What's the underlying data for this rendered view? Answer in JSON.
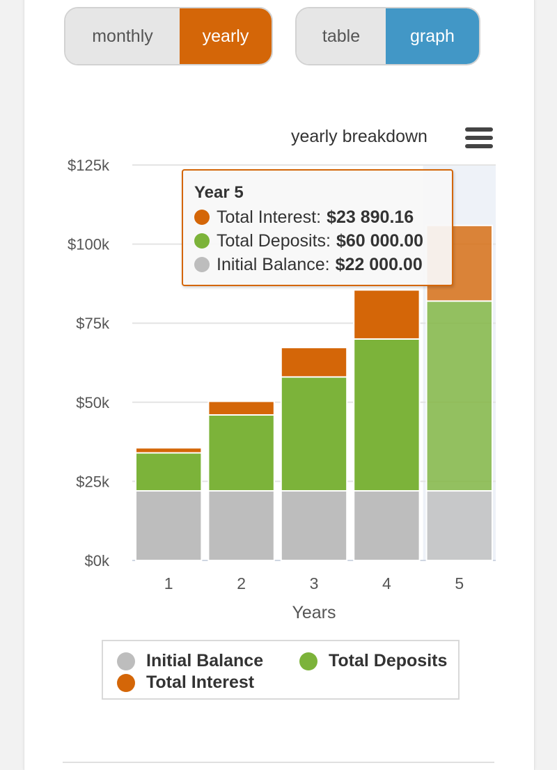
{
  "period_toggle": {
    "options": [
      "monthly",
      "yearly"
    ],
    "selected": "yearly"
  },
  "view_toggle": {
    "options": [
      "table",
      "graph"
    ],
    "selected": "graph"
  },
  "chart_header": {
    "title": "yearly breakdown",
    "menu_icon": "hamburger-menu-icon"
  },
  "chart_data": {
    "type": "bar",
    "stacked": true,
    "title": "yearly breakdown",
    "xlabel": "Years",
    "ylabel": "",
    "categories": [
      "1",
      "2",
      "3",
      "4",
      "5"
    ],
    "ylim": [
      0,
      125000
    ],
    "yticks": [
      0,
      25000,
      50000,
      75000,
      100000,
      125000
    ],
    "ytick_labels": [
      "$0k",
      "$25k",
      "$50k",
      "$75k",
      "$100k",
      "$125k"
    ],
    "series": [
      {
        "name": "Initial Balance",
        "color": "#bdbdbd",
        "values": [
          22000,
          22000,
          22000,
          22000,
          22000
        ]
      },
      {
        "name": "Total Deposits",
        "color": "#7cb33a",
        "values": [
          12000,
          24000,
          36000,
          48000,
          60000
        ]
      },
      {
        "name": "Total Interest",
        "color": "#d46608",
        "values": [
          1600,
          4300,
          9300,
          15500,
          23890.16
        ]
      }
    ],
    "highlighted_category": "5",
    "grid": true,
    "legend_position": "bottom"
  },
  "tooltip": {
    "heading": "Year 5",
    "rows": [
      {
        "label": "Total Interest:",
        "value": "$23 890.16",
        "color": "#d46608"
      },
      {
        "label": "Total Deposits:",
        "value": "$60 000.00",
        "color": "#7cb33a"
      },
      {
        "label": "Initial Balance:",
        "value": "$22 000.00",
        "color": "#bdbdbd"
      }
    ]
  },
  "legend": {
    "items": [
      {
        "label": "Initial Balance",
        "color": "#bdbdbd"
      },
      {
        "label": "Total Deposits",
        "color": "#7cb33a"
      },
      {
        "label": "Total Interest",
        "color": "#d46608"
      }
    ]
  }
}
